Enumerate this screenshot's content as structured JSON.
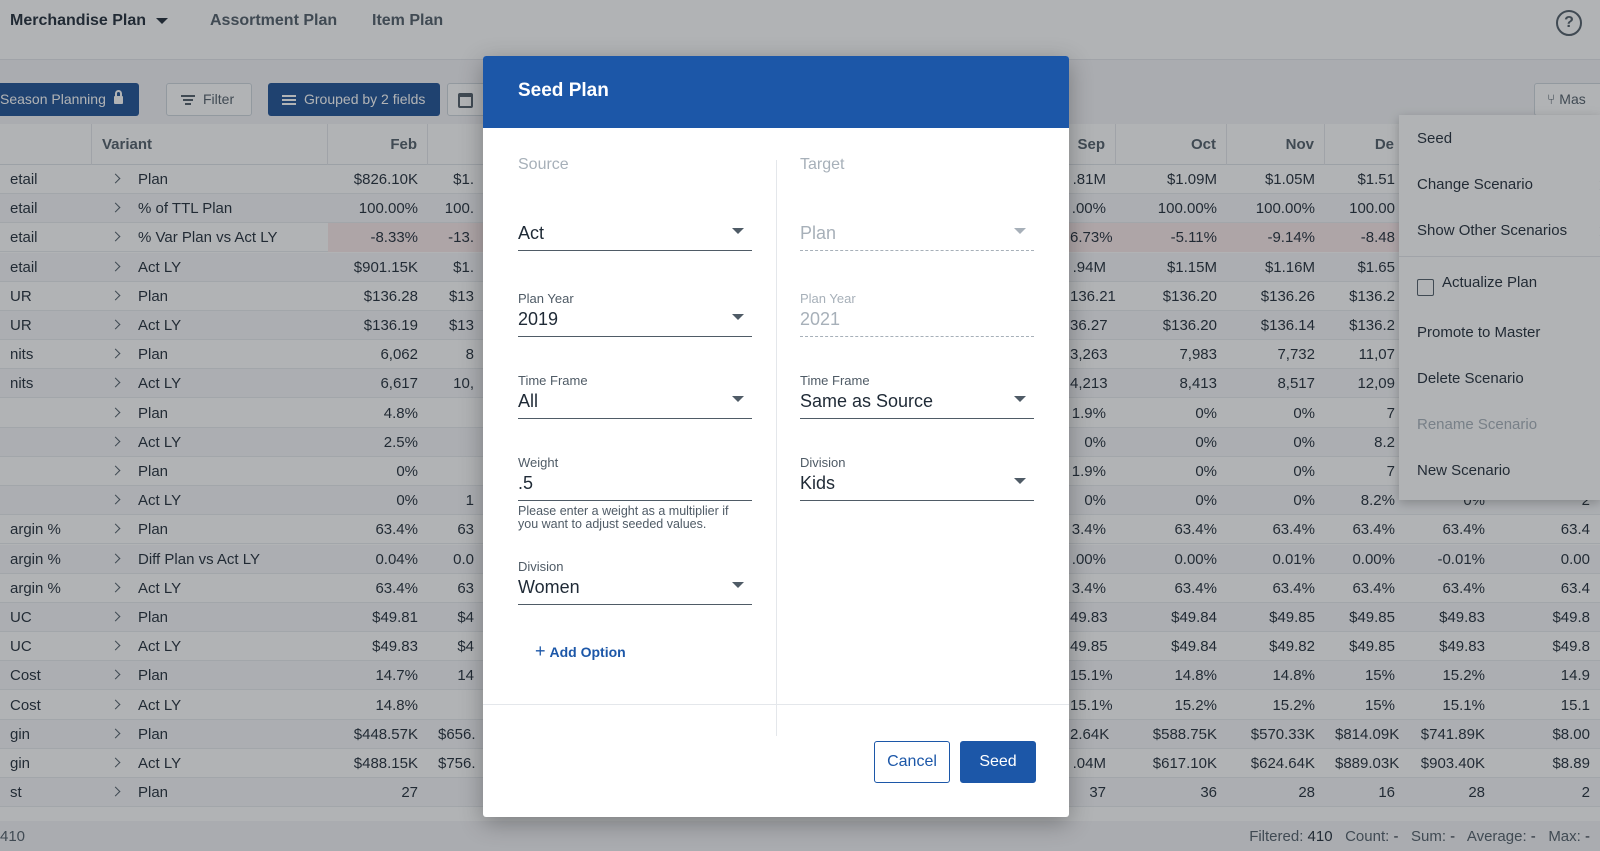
{
  "nav": {
    "items": [
      {
        "label": "Merchandise Plan",
        "active": true
      },
      {
        "label": "Assortment Plan",
        "active": false
      },
      {
        "label": "Item Plan",
        "active": false
      }
    ]
  },
  "toolbar": {
    "season_planning": "Season Planning",
    "filter": "Filter",
    "grouped": "Grouped by 2 fields",
    "master": "Mas"
  },
  "grid": {
    "headers": {
      "variant": "Variant",
      "feb": "Feb",
      "sep": "Sep",
      "oct": "Oct",
      "nov": "Nov",
      "dec": "De"
    },
    "rows": [
      {
        "metric": "etail",
        "variant": "Plan",
        "feb": "$826.10K",
        "mar": "$1.",
        "sep": ".81M",
        "oct": "$1.09M",
        "nov": "$1.05M",
        "dec": "$1.51",
        "jan": "",
        "jan2": ""
      },
      {
        "metric": "etail",
        "variant": "% of TTL Plan",
        "feb": "100.00%",
        "mar": "100.",
        "sep": ".00%",
        "oct": "100.00%",
        "nov": "100.00%",
        "dec": "100.00",
        "jan": "",
        "jan2": ""
      },
      {
        "metric": "etail",
        "variant": "% Var Plan vs Act LY",
        "feb": "-8.33%",
        "mar": "-13.",
        "sep": "6.73%",
        "oct": "-5.11%",
        "nov": "-9.14%",
        "dec": "-8.48",
        "jan": "",
        "jan2": "",
        "neg": true
      },
      {
        "metric": "etail",
        "variant": "Act LY",
        "feb": "$901.15K",
        "mar": "$1.",
        "sep": ".94M",
        "oct": "$1.15M",
        "nov": "$1.16M",
        "dec": "$1.65",
        "jan": "",
        "jan2": ""
      },
      {
        "metric": "UR",
        "variant": "Plan",
        "feb": "$136.28",
        "mar": "$13",
        "sep": "136.21",
        "oct": "$136.20",
        "nov": "$136.26",
        "dec": "$136.2",
        "jan": "",
        "jan2": ""
      },
      {
        "metric": "UR",
        "variant": "Act LY",
        "feb": "$136.19",
        "mar": "$13",
        "sep": "36.27",
        "oct": "$136.20",
        "nov": "$136.14",
        "dec": "$136.2",
        "jan": "",
        "jan2": ""
      },
      {
        "metric": "nits",
        "variant": "Plan",
        "feb": "6,062",
        "mar": "8",
        "sep": "3,263",
        "oct": "7,983",
        "nov": "7,732",
        "dec": "11,07",
        "jan": "",
        "jan2": ""
      },
      {
        "metric": "nits",
        "variant": "Act LY",
        "feb": "6,617",
        "mar": "10,",
        "sep": "4,213",
        "oct": "8,413",
        "nov": "8,517",
        "dec": "12,09",
        "jan": "",
        "jan2": ""
      },
      {
        "metric": "",
        "variant": "Plan",
        "feb": "4.8%",
        "mar": "",
        "sep": "1.9%",
        "oct": "0%",
        "nov": "0%",
        "dec": "7",
        "jan": "",
        "jan2": ""
      },
      {
        "metric": "",
        "variant": "Act LY",
        "feb": "2.5%",
        "mar": "",
        "sep": "0%",
        "oct": "0%",
        "nov": "0%",
        "dec": "8.2",
        "jan": "",
        "jan2": ""
      },
      {
        "metric": "",
        "variant": "Plan",
        "feb": "0%",
        "mar": "",
        "sep": "1.9%",
        "oct": "0%",
        "nov": "0%",
        "dec": "7",
        "jan": "",
        "jan2": ""
      },
      {
        "metric": "",
        "variant": "Act LY",
        "feb": "0%",
        "mar": "1",
        "sep": "0%",
        "oct": "0%",
        "nov": "0%",
        "dec": "8.2%",
        "jan": "0%",
        "jan2": "2"
      },
      {
        "metric": "argin %",
        "variant": "Plan",
        "feb": "63.4%",
        "mar": "63",
        "sep": "3.4%",
        "oct": "63.4%",
        "nov": "63.4%",
        "dec": "63.4%",
        "jan": "63.4%",
        "jan2": "63.4"
      },
      {
        "metric": "argin %",
        "variant": "Diff Plan vs Act LY",
        "feb": "0.04%",
        "mar": "0.0",
        "sep": ".00%",
        "oct": "0.00%",
        "nov": "0.01%",
        "dec": "0.00%",
        "jan": "-0.01%",
        "jan2": "0.00"
      },
      {
        "metric": "argin %",
        "variant": "Act LY",
        "feb": "63.4%",
        "mar": "63",
        "sep": "3.4%",
        "oct": "63.4%",
        "nov": "63.4%",
        "dec": "63.4%",
        "jan": "63.4%",
        "jan2": "63.4"
      },
      {
        "metric": "UC",
        "variant": "Plan",
        "feb": "$49.81",
        "mar": "$4",
        "sep": "49.83",
        "oct": "$49.84",
        "nov": "$49.85",
        "dec": "$49.85",
        "jan": "$49.83",
        "jan2": "$49.8"
      },
      {
        "metric": "UC",
        "variant": "Act LY",
        "feb": "$49.83",
        "mar": "$4",
        "sep": "49.85",
        "oct": "$49.84",
        "nov": "$49.82",
        "dec": "$49.85",
        "jan": "$49.83",
        "jan2": "$49.8"
      },
      {
        "metric": "Cost",
        "variant": "Plan",
        "feb": "14.7%",
        "mar": "14",
        "sep": "15.1%",
        "oct": "14.8%",
        "nov": "14.8%",
        "dec": "15%",
        "jan": "15.2%",
        "jan2": "14.9"
      },
      {
        "metric": "Cost",
        "variant": "Act LY",
        "feb": "14.8%",
        "mar": "",
        "sep": "15.1%",
        "oct": "15.2%",
        "nov": "15.2%",
        "dec": "15%",
        "jan": "15.1%",
        "jan2": "15.1"
      },
      {
        "metric": "gin",
        "variant": "Plan",
        "feb": "$448.57K",
        "mar": "$656.",
        "sep": "2.64K",
        "oct": "$588.75K",
        "nov": "$570.33K",
        "dec": "$814.09K",
        "jan": "$741.89K",
        "jan2": "$8.00"
      },
      {
        "metric": "gin",
        "variant": "Act LY",
        "feb": "$488.15K",
        "mar": "$756.",
        "sep": ".04M",
        "oct": "$617.10K",
        "nov": "$624.64K",
        "dec": "$889.03K",
        "jan": "$903.40K",
        "jan2": "$8.89"
      },
      {
        "metric": "st",
        "variant": "Plan",
        "feb": "27",
        "mar": "",
        "sep": "37",
        "oct": "36",
        "nov": "28",
        "dec": "16",
        "jan": "28",
        "jan2": "2"
      }
    ]
  },
  "footer": {
    "left": "410",
    "filtered_label": "Filtered:",
    "filtered_value": "410",
    "count_label": "Count:",
    "count_value": "-",
    "sum_label": "Sum:",
    "sum_value": "-",
    "average_label": "Average:",
    "average_value": "-",
    "max_label": "Max:",
    "max_value": "-"
  },
  "context_menu": {
    "seed": "Seed",
    "change_scenario": "Change Scenario",
    "show_other": "Show Other Scenarios",
    "actualize": "Actualize Plan",
    "promote": "Promote to Master",
    "delete": "Delete Scenario",
    "rename": "Rename Scenario",
    "new": "New Scenario"
  },
  "modal": {
    "title": "Seed Plan",
    "source": {
      "heading": "Source",
      "source_value": "Act",
      "plan_year_label": "Plan Year",
      "plan_year_value": "2019",
      "time_frame_label": "Time Frame",
      "time_frame_value": "All",
      "weight_label": "Weight",
      "weight_value": ".5",
      "weight_hint": "Please enter a weight as a multiplier if you want to adjust seeded values.",
      "division_label": "Division",
      "division_value": "Women",
      "add_option": "Add Option"
    },
    "target": {
      "heading": "Target",
      "target_value": "Plan",
      "plan_year_label": "Plan Year",
      "plan_year_value": "2021",
      "time_frame_label": "Time Frame",
      "time_frame_value": "Same as Source",
      "division_label": "Division",
      "division_value": "Kids"
    },
    "cancel": "Cancel",
    "seed": "Seed"
  }
}
